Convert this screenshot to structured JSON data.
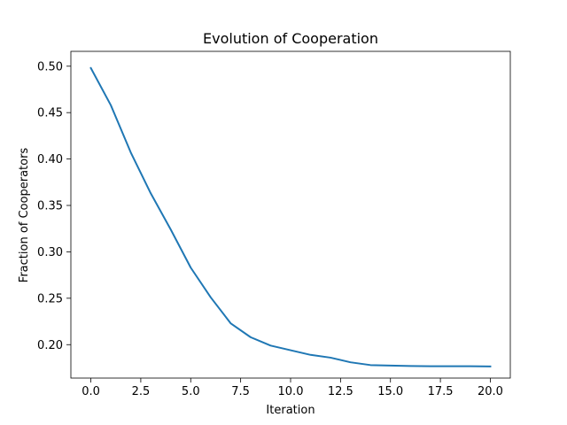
{
  "chart_data": {
    "type": "line",
    "title": "Evolution of Cooperation",
    "xlabel": "Iteration",
    "ylabel": "Fraction of Cooperators",
    "xlim": [
      -1,
      21
    ],
    "ylim": [
      0.164,
      0.516
    ],
    "xticks": [
      0,
      2.5,
      5,
      7.5,
      10,
      12.5,
      15,
      17.5,
      20
    ],
    "xtick_labels": [
      "0.0",
      "2.5",
      "5.0",
      "7.5",
      "10.0",
      "12.5",
      "15.0",
      "17.5",
      "20.0"
    ],
    "yticks": [
      0.2,
      0.25,
      0.3,
      0.35,
      0.4,
      0.45,
      0.5
    ],
    "ytick_labels": [
      "0.20",
      "0.25",
      "0.30",
      "0.35",
      "0.40",
      "0.45",
      "0.50"
    ],
    "grid": false,
    "series": [
      {
        "color": "#1f77b4",
        "x": [
          0,
          1,
          2,
          3,
          4,
          5,
          6,
          7,
          8,
          9,
          10,
          11,
          12,
          13,
          14,
          15,
          16,
          17,
          18,
          19,
          20
        ],
        "y": [
          0.498,
          0.458,
          0.407,
          0.363,
          0.324,
          0.283,
          0.251,
          0.223,
          0.208,
          0.199,
          0.194,
          0.189,
          0.186,
          0.181,
          0.178,
          0.1775,
          0.177,
          0.1768,
          0.1768,
          0.1768,
          0.1765
        ]
      }
    ]
  }
}
